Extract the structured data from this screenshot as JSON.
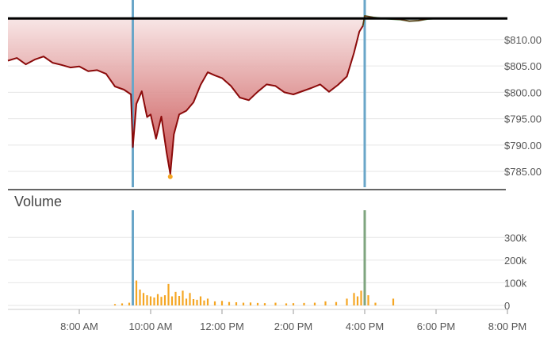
{
  "chart_data": [
    {
      "panel": "price",
      "type": "area",
      "title": "",
      "xlabel": "",
      "ylabel": "",
      "xlim": [
        6.0,
        20.0
      ],
      "ylim": [
        782.0,
        816.0
      ],
      "y_ticks": [
        810,
        805,
        800,
        795,
        790,
        785
      ],
      "y_tick_labels": [
        "$810.00",
        "$805.00",
        "$800.00",
        "$795.00",
        "$790.00",
        "$785.00"
      ],
      "reference_line": 814.0,
      "session_markers": [
        9.5,
        16.0
      ],
      "grid": true,
      "colors": {
        "line": "#8b0a0a",
        "fill_top": "#f7e3e3",
        "fill_bottom": "#c23a3a",
        "after_hours": "#2e7d32",
        "reference": "#000000",
        "marker": "#6aa6c8",
        "low_dot": "#f5a623"
      },
      "series": [
        {
          "session": "regular",
          "x": [
            6.0,
            6.25,
            6.5,
            6.75,
            7.0,
            7.25,
            7.5,
            7.75,
            8.0,
            8.25,
            8.5,
            8.75,
            9.0,
            9.25,
            9.45,
            9.5,
            9.6,
            9.75,
            9.9,
            10.0,
            10.15,
            10.3,
            10.45,
            10.55,
            10.65,
            10.8,
            11.0,
            11.2,
            11.4,
            11.6,
            11.8,
            12.0,
            12.25,
            12.5,
            12.75,
            13.0,
            13.25,
            13.5,
            13.75,
            14.0,
            14.25,
            14.5,
            14.75,
            15.0,
            15.25,
            15.5,
            15.7,
            15.85,
            15.95
          ],
          "values": [
            806.0,
            806.5,
            805.3,
            806.2,
            806.8,
            805.6,
            805.2,
            804.7,
            804.9,
            804.0,
            804.2,
            803.5,
            801.1,
            800.5,
            799.6,
            789.6,
            797.8,
            800.2,
            795.3,
            795.8,
            791.2,
            795.4,
            788.5,
            784.5,
            792.0,
            795.8,
            796.5,
            798.1,
            801.4,
            803.8,
            803.2,
            802.7,
            801.2,
            799.0,
            798.5,
            800.1,
            801.5,
            801.2,
            800.0,
            799.6,
            800.2,
            800.8,
            801.5,
            800.1,
            801.4,
            803.0,
            807.5,
            811.5,
            812.6
          ]
        },
        {
          "session": "after-hours",
          "x": [
            16.0,
            16.25,
            16.5,
            16.75,
            17.0,
            17.25,
            17.5,
            17.75,
            18.0
          ],
          "values": [
            814.5,
            814.2,
            814.0,
            813.9,
            813.8,
            813.5,
            813.6,
            813.9,
            814.0
          ]
        }
      ],
      "annotations": [
        {
          "x": 10.55,
          "y": 784.0,
          "label": "day low marker"
        }
      ]
    },
    {
      "panel": "volume",
      "type": "bar",
      "title": "Volume",
      "xlabel": "",
      "ylabel": "",
      "xlim": [
        6.0,
        20.0
      ],
      "ylim": [
        0,
        420000
      ],
      "y_ticks": [
        0,
        100000,
        200000,
        300000
      ],
      "y_tick_labels": [
        "0",
        "100k",
        "200k",
        "300k"
      ],
      "x_ticks": [
        8.0,
        10.0,
        12.0,
        14.0,
        16.0,
        18.0,
        20.0
      ],
      "x_tick_labels": [
        "8:00 AM",
        "10:00 AM",
        "12:00 PM",
        "2:00 PM",
        "4:00 PM",
        "6:00 PM",
        "8:00 PM"
      ],
      "grid": true,
      "colors": {
        "bar": "#f5a623",
        "open_auction": "#6aa6c8",
        "close_auction": "#7fa57f"
      },
      "series": [
        {
          "name": "",
          "x": [
            9.0,
            9.2,
            9.4,
            9.5,
            9.6,
            9.7,
            9.8,
            9.9,
            10.0,
            10.1,
            10.2,
            10.3,
            10.4,
            10.5,
            10.6,
            10.7,
            10.8,
            10.9,
            11.0,
            11.1,
            11.2,
            11.3,
            11.4,
            11.5,
            11.6,
            11.8,
            12.0,
            12.2,
            12.4,
            12.6,
            12.8,
            13.0,
            13.2,
            13.5,
            13.8,
            14.0,
            14.3,
            14.6,
            14.9,
            15.2,
            15.5,
            15.7,
            15.8,
            15.9,
            16.0,
            16.1,
            16.3,
            16.8
          ],
          "values": [
            6000,
            9000,
            12000,
            420000,
            110000,
            70000,
            55000,
            45000,
            40000,
            35000,
            50000,
            38000,
            45000,
            95000,
            40000,
            60000,
            42000,
            65000,
            30000,
            55000,
            28000,
            25000,
            40000,
            22000,
            30000,
            18000,
            20000,
            15000,
            14000,
            12000,
            13000,
            11000,
            10000,
            12000,
            9000,
            10000,
            11000,
            12000,
            18000,
            15000,
            30000,
            55000,
            40000,
            65000,
            420000,
            45000,
            12000,
            30000
          ]
        }
      ]
    }
  ]
}
